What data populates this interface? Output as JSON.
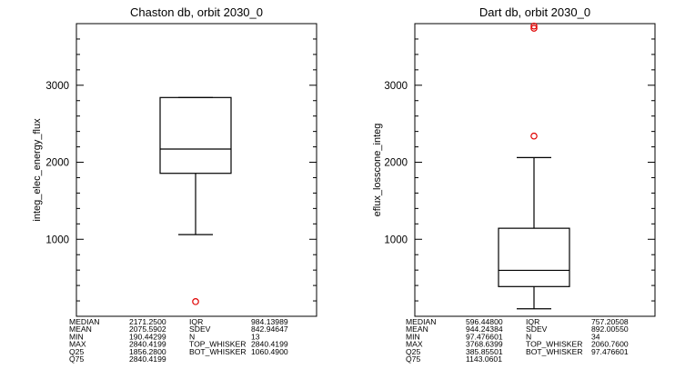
{
  "chart_data": [
    {
      "type": "box",
      "title": "Chaston db, orbit 2030_0",
      "ylabel": "integ_elec_energy_flux",
      "ylim": [
        0,
        3800
      ],
      "yticks": [
        1000,
        2000,
        3000
      ],
      "box": {
        "q25": 1856.28,
        "median": 2171.25,
        "q75": 2840.4199,
        "whisker_low": 1060.49,
        "whisker_high": 2840.4199
      },
      "outliers": [],
      "low_markers": [
        190.44299
      ],
      "stats": [
        {
          "label": "MEDIAN",
          "value": "2171.2500",
          "label2": "IQR",
          "value2": "984.13989"
        },
        {
          "label": "MEAN",
          "value": "2075.5902",
          "label2": "SDEV",
          "value2": "842.94647"
        },
        {
          "label": "MIN",
          "value": "190.44299",
          "label2": "N",
          "value2": "13"
        },
        {
          "label": "MAX",
          "value": "2840.4199",
          "label2": "TOP_WHISKER",
          "value2": "2840.4199"
        },
        {
          "label": "Q25",
          "value": "1856.2800",
          "label2": "BOT_WHISKER",
          "value2": "1060.4900"
        },
        {
          "label": "Q75",
          "value": "2840.4199",
          "label2": "",
          "value2": ""
        }
      ],
      "marker_color": "#e00000"
    },
    {
      "type": "box",
      "title": "Dart db, orbit 2030_0",
      "ylabel": "eflux_losscone_integ",
      "ylim": [
        0,
        3800
      ],
      "yticks": [
        1000,
        2000,
        3000
      ],
      "box": {
        "q25": 385.85501,
        "median": 596.448,
        "q75": 1143.0601,
        "whisker_low": 97.476601,
        "whisker_high": 2060.76
      },
      "outliers": [
        2340,
        3740,
        3768.6399
      ],
      "low_markers": [],
      "stats": [
        {
          "label": "MEDIAN",
          "value": "596.44800",
          "label2": "IQR",
          "value2": "757.20508"
        },
        {
          "label": "MEAN",
          "value": "944.24384",
          "label2": "SDEV",
          "value2": "892.00550"
        },
        {
          "label": "MIN",
          "value": "97.476601",
          "label2": "N",
          "value2": "34"
        },
        {
          "label": "MAX",
          "value": "3768.6399",
          "label2": "TOP_WHISKER",
          "value2": "2060.7600"
        },
        {
          "label": "Q25",
          "value": "385.85501",
          "label2": "BOT_WHISKER",
          "value2": "97.476601"
        },
        {
          "label": "Q75",
          "value": "1143.0601",
          "label2": "",
          "value2": ""
        }
      ],
      "marker_color": "#e00000"
    }
  ]
}
